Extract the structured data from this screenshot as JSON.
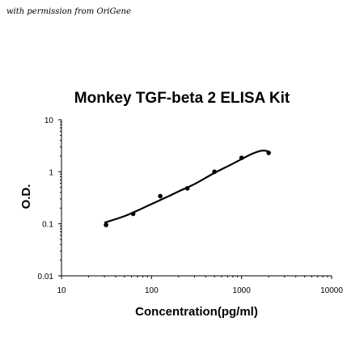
{
  "credit": "with permission from OriGene",
  "chart_data": {
    "type": "scatter",
    "title": "Monkey TGF-beta 2 ELISA Kit",
    "xlabel": "Concentration(pg/ml)",
    "ylabel": "O.D.",
    "xscale": "log",
    "yscale": "log",
    "xlim": [
      10,
      10000
    ],
    "ylim": [
      0.01,
      10
    ],
    "xticks": [
      "10",
      "100",
      "1000",
      "10000"
    ],
    "yticks": [
      "0.01",
      "0.1",
      "1",
      "10"
    ],
    "grid": false,
    "legend": "none",
    "series": [
      {
        "points": [
          {
            "x": 31.25,
            "y": 0.095
          },
          {
            "x": 62.5,
            "y": 0.155
          },
          {
            "x": 125,
            "y": 0.34
          },
          {
            "x": 250,
            "y": 0.48
          },
          {
            "x": 500,
            "y": 1.0
          },
          {
            "x": 1000,
            "y": 1.85
          },
          {
            "x": 2000,
            "y": 2.3
          }
        ]
      }
    ],
    "fit_curve": {
      "x": [
        30,
        50,
        75,
        100,
        150,
        200,
        300,
        500,
        750,
        1000,
        1300,
        1600,
        1800,
        2000
      ],
      "y": [
        0.105,
        0.14,
        0.19,
        0.24,
        0.33,
        0.42,
        0.58,
        0.95,
        1.35,
        1.75,
        2.2,
        2.5,
        2.55,
        2.45
      ]
    },
    "colors": {
      "marker": "#000000",
      "curve": "#000000",
      "axis": "#000000"
    }
  }
}
